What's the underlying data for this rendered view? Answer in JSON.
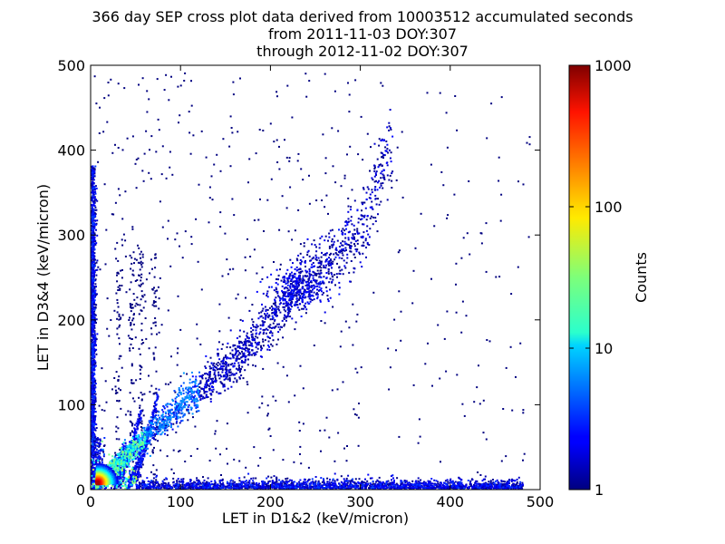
{
  "chart_data": {
    "type": "heatmap",
    "title_lines": [
      "366 day SEP cross plot data derived from 10003512 accumulated seconds",
      "from 2011-11-03 DOY:307",
      "through 2012-11-02 DOY:307"
    ],
    "xlabel": "LET in D1&2 (keV/micron)",
    "ylabel": "LET in D3&4 (keV/micron)",
    "xlim": [
      0,
      500
    ],
    "ylim": [
      0,
      500
    ],
    "x_ticks": [
      0,
      100,
      200,
      300,
      400,
      500
    ],
    "y_ticks": [
      0,
      100,
      200,
      300,
      400,
      500
    ],
    "colorbar": {
      "label": "Counts",
      "scale": "log",
      "range": [
        1,
        1000
      ],
      "ticks": [
        1,
        10,
        100,
        1000
      ],
      "colormap": "jet"
    },
    "features": [
      {
        "name": "main diagonal track",
        "points": [
          [
            20,
            20
          ],
          [
            60,
            60
          ],
          [
            100,
            100
          ],
          [
            160,
            150
          ],
          [
            230,
            235
          ],
          [
            300,
            300
          ],
          [
            330,
            400
          ]
        ],
        "density": "medium"
      },
      {
        "name": "low-energy core",
        "center": [
          5,
          5
        ],
        "counts_peak": 1000
      },
      {
        "name": "x-axis band",
        "from": [
          0,
          0
        ],
        "to": [
          480,
          5
        ],
        "density": "medium"
      },
      {
        "name": "y-axis band",
        "from": [
          0,
          0
        ],
        "to": [
          5,
          380
        ],
        "density": "medium"
      }
    ]
  }
}
